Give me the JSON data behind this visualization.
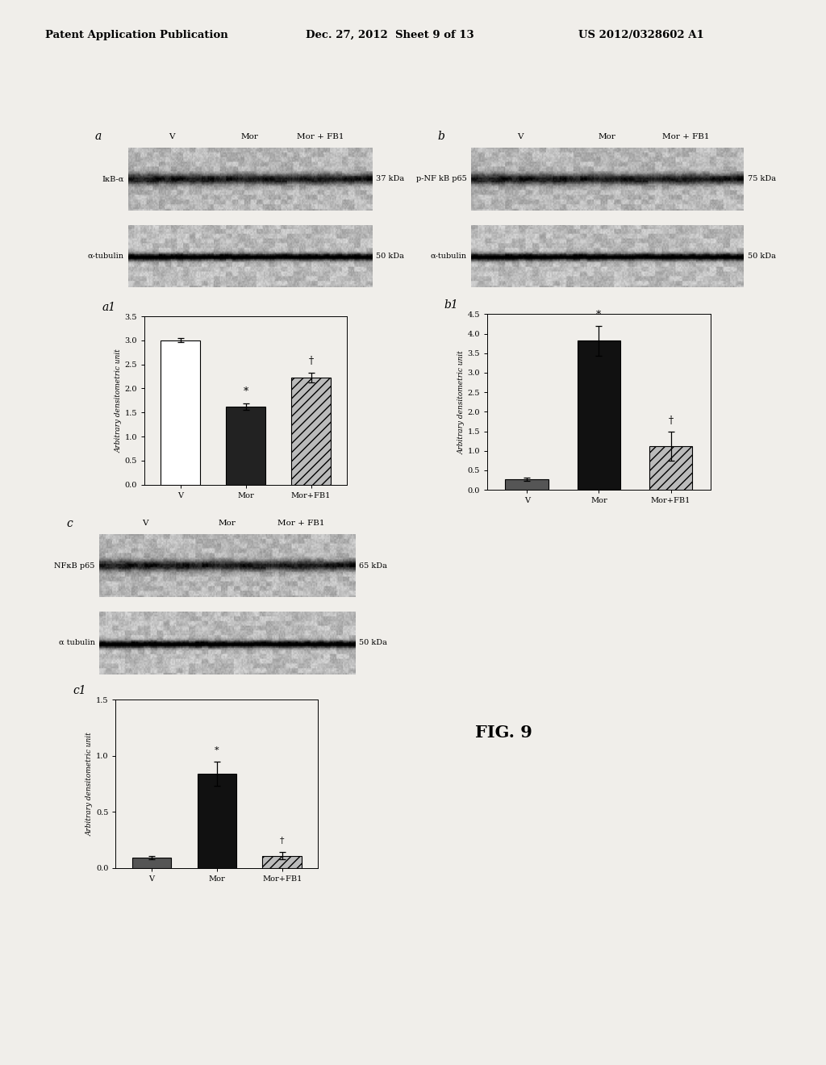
{
  "header_left": "Patent Application Publication",
  "header_mid": "Dec. 27, 2012  Sheet 9 of 13",
  "header_right": "US 2012/0328602 A1",
  "fig_label": "FIG. 9",
  "bg_color": "#f0eeea",
  "panel_a": {
    "label": "a",
    "blot1_label": "IκB-α",
    "blot1_kda": "37 kDa",
    "blot2_label": "α-tubulin",
    "blot2_kda": "50 kDa",
    "col_labels": [
      "V",
      "Mor",
      "Mor + FB1"
    ]
  },
  "panel_a1": {
    "label": "a1",
    "ylabel": "Arbitrary densitometric unit",
    "categories": [
      "V",
      "Mor",
      "Mor+FB1"
    ],
    "values": [
      3.0,
      1.62,
      2.22
    ],
    "errors": [
      0.04,
      0.07,
      0.1
    ],
    "bar_colors": [
      "white",
      "#222222",
      "#bbbbbb"
    ],
    "bar_hatches": [
      "",
      "",
      "///"
    ],
    "ylim": [
      0.0,
      3.5
    ],
    "yticks": [
      0.0,
      0.5,
      1.0,
      1.5,
      2.0,
      2.5,
      3.0,
      3.5
    ]
  },
  "panel_b": {
    "label": "b",
    "blot1_label": "p-NF kB p65",
    "blot1_kda": "75 kDa",
    "blot2_label": "α-tubulin",
    "blot2_kda": "50 kDa",
    "col_labels": [
      "V",
      "Mor",
      "Mor + FB1"
    ]
  },
  "panel_b1": {
    "label": "b1",
    "ylabel": "Arbitrary densitometric unit",
    "categories": [
      "V",
      "Mor",
      "Mor+FB1"
    ],
    "values": [
      0.28,
      3.82,
      1.12
    ],
    "errors": [
      0.04,
      0.38,
      0.38
    ],
    "bar_colors": [
      "#555555",
      "#111111",
      "#bbbbbb"
    ],
    "bar_hatches": [
      "",
      "",
      "///"
    ],
    "ylim": [
      0.0,
      4.5
    ],
    "yticks": [
      0.0,
      0.5,
      1.0,
      1.5,
      2.0,
      2.5,
      3.0,
      3.5,
      4.0,
      4.5
    ]
  },
  "panel_c": {
    "label": "c",
    "blot1_label": "NFκB p65",
    "blot1_kda": "65 kDa",
    "blot2_label": "α tubulin",
    "blot2_kda": "50 kDa",
    "col_labels": [
      "V",
      "Mor",
      "Mor + FB1"
    ]
  },
  "panel_c1": {
    "label": "c1",
    "ylabel": "Arbitrary densitometric unit",
    "categories": [
      "V",
      "Mor",
      "Mor+FB1"
    ],
    "values": [
      0.09,
      0.84,
      0.11
    ],
    "errors": [
      0.015,
      0.11,
      0.035
    ],
    "bar_colors": [
      "#555555",
      "#111111",
      "#bbbbbb"
    ],
    "bar_hatches": [
      "",
      "",
      "///"
    ],
    "ylim": [
      0.0,
      1.5
    ],
    "yticks": [
      0.0,
      0.5,
      1.0,
      1.5
    ]
  }
}
